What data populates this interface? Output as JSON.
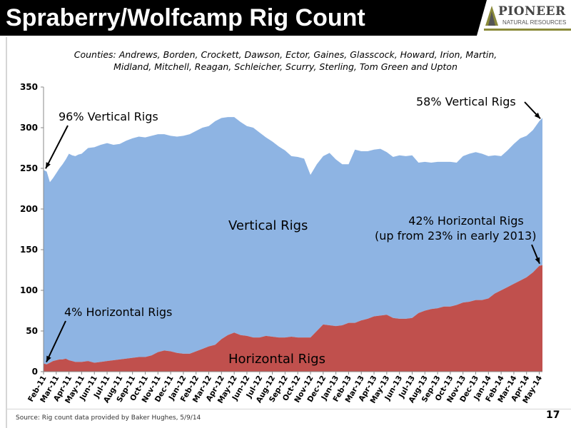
{
  "slide": {
    "title": "Spraberry/Wolfcamp Rig Count",
    "subtitle_line1": "Counties: Andrews, Borden, Crockett, Dawson, Ector, Gaines, Glasscock, Howard, Irion, Martin,",
    "subtitle_line2": "Midland, Mitchell, Reagan, Schleicher, Scurry, Sterling, Tom Green and Upton",
    "source": "Source: Rig count data provided by Baker Hughes, 5/9/14",
    "page_number": "17"
  },
  "logo": {
    "name": "PIONEER",
    "tagline": "NATURAL RESOURCES"
  },
  "annotations": {
    "vert_start": "96% Vertical Rigs",
    "vert_end": "58% Vertical Rigs",
    "horiz_start": "4% Horizontal Rigs",
    "horiz_end_line1": "42% Horizontal Rigs",
    "horiz_end_line2": "(up from 23% in early 2013)",
    "vert_area_label": "Vertical Rigs",
    "horiz_area_label": "Horizontal Rigs"
  },
  "colors": {
    "vertical": "#8eb4e3",
    "horizontal": "#c0504d",
    "title_bg": "#000000",
    "logo_accent": "#8a8a3a"
  },
  "chart_data": {
    "type": "area",
    "stacked": true,
    "ylim": [
      0,
      350
    ],
    "yticks": [
      0,
      50,
      100,
      150,
      200,
      250,
      300,
      350
    ],
    "xlabels": [
      "Feb-11",
      "Mar-11",
      "Apr-11",
      "May-11",
      "Jun-11",
      "Jul-11",
      "Aug-11",
      "Sep-11",
      "Oct-11",
      "Nov-11",
      "Dec-11",
      "Jan-12",
      "Feb-12",
      "Mar-12",
      "Apr-12",
      "May-12",
      "Jun-12",
      "Jul-12",
      "Aug-12",
      "Sep-12",
      "Oct-12",
      "Nov-12",
      "Dec-12",
      "Jan-13",
      "Feb-13",
      "Mar-13",
      "Apr-13",
      "May-13",
      "Jun-13",
      "Jul-13",
      "Aug-13",
      "Sep-13",
      "Oct-13",
      "Nov-13",
      "Dec-13",
      "Jan-14",
      "Feb-14",
      "Mar-14",
      "Apr-14",
      "May-14"
    ],
    "x_points": [
      0,
      0.25,
      0.5,
      0.75,
      1,
      1.25,
      1.5,
      1.75,
      2,
      2.25,
      2.5,
      2.75,
      3,
      3.5,
      4,
      4.5,
      5,
      5.5,
      6,
      6.5,
      7,
      7.5,
      8,
      8.5,
      9,
      9.5,
      10,
      10.5,
      11,
      11.5,
      12,
      12.5,
      13,
      13.5,
      14,
      14.5,
      15,
      15.5,
      16,
      16.5,
      17,
      17.5,
      18,
      18.5,
      19,
      19.5,
      20,
      20.5,
      21,
      21.5,
      22,
      22.5,
      23,
      23.5,
      24,
      24.5,
      25,
      25.5,
      26,
      26.5,
      27,
      27.5,
      28,
      28.5,
      29,
      29.5,
      30,
      30.5,
      31,
      31.5,
      32,
      32.5,
      33,
      33.5,
      34,
      34.5,
      35,
      35.5,
      36,
      36.5,
      37,
      37.5,
      38,
      38.5,
      39,
      39.25
    ],
    "series": [
      {
        "name": "Horizontal Rigs",
        "values": [
          10,
          9,
          11,
          13,
          14,
          15,
          15,
          16,
          14,
          13,
          12,
          12,
          12,
          13,
          11,
          12,
          13,
          14,
          15,
          16,
          17,
          18,
          18,
          20,
          24,
          26,
          25,
          23,
          22,
          22,
          25,
          28,
          31,
          33,
          40,
          45,
          48,
          45,
          44,
          42,
          42,
          44,
          43,
          42,
          42,
          43,
          42,
          42,
          42,
          50,
          58,
          57,
          56,
          57,
          60,
          60,
          63,
          65,
          68,
          69,
          70,
          66,
          65,
          65,
          66,
          72,
          75,
          77,
          78,
          80,
          80,
          82,
          85,
          86,
          88,
          88,
          90,
          96,
          100,
          104,
          108,
          112,
          116,
          122,
          130,
          131
        ]
      },
      {
        "name": "Vertical Rigs",
        "values": [
          238,
          237,
          222,
          225,
          230,
          235,
          240,
          245,
          254,
          253,
          253,
          255,
          256,
          262,
          265,
          267,
          268,
          265,
          265,
          268,
          270,
          271,
          270,
          270,
          268,
          266,
          265,
          266,
          268,
          270,
          271,
          272,
          271,
          275,
          272,
          268,
          265,
          262,
          258,
          258,
          252,
          244,
          240,
          235,
          230,
          222,
          222,
          220,
          200,
          205,
          207,
          212,
          205,
          198,
          195,
          213,
          208,
          206,
          205,
          205,
          200,
          198,
          201,
          200,
          200,
          185,
          183,
          180,
          180,
          178,
          178,
          175,
          180,
          182,
          182,
          180,
          175,
          170,
          165,
          168,
          172,
          175,
          174,
          175,
          178,
          181
        ]
      }
    ]
  }
}
